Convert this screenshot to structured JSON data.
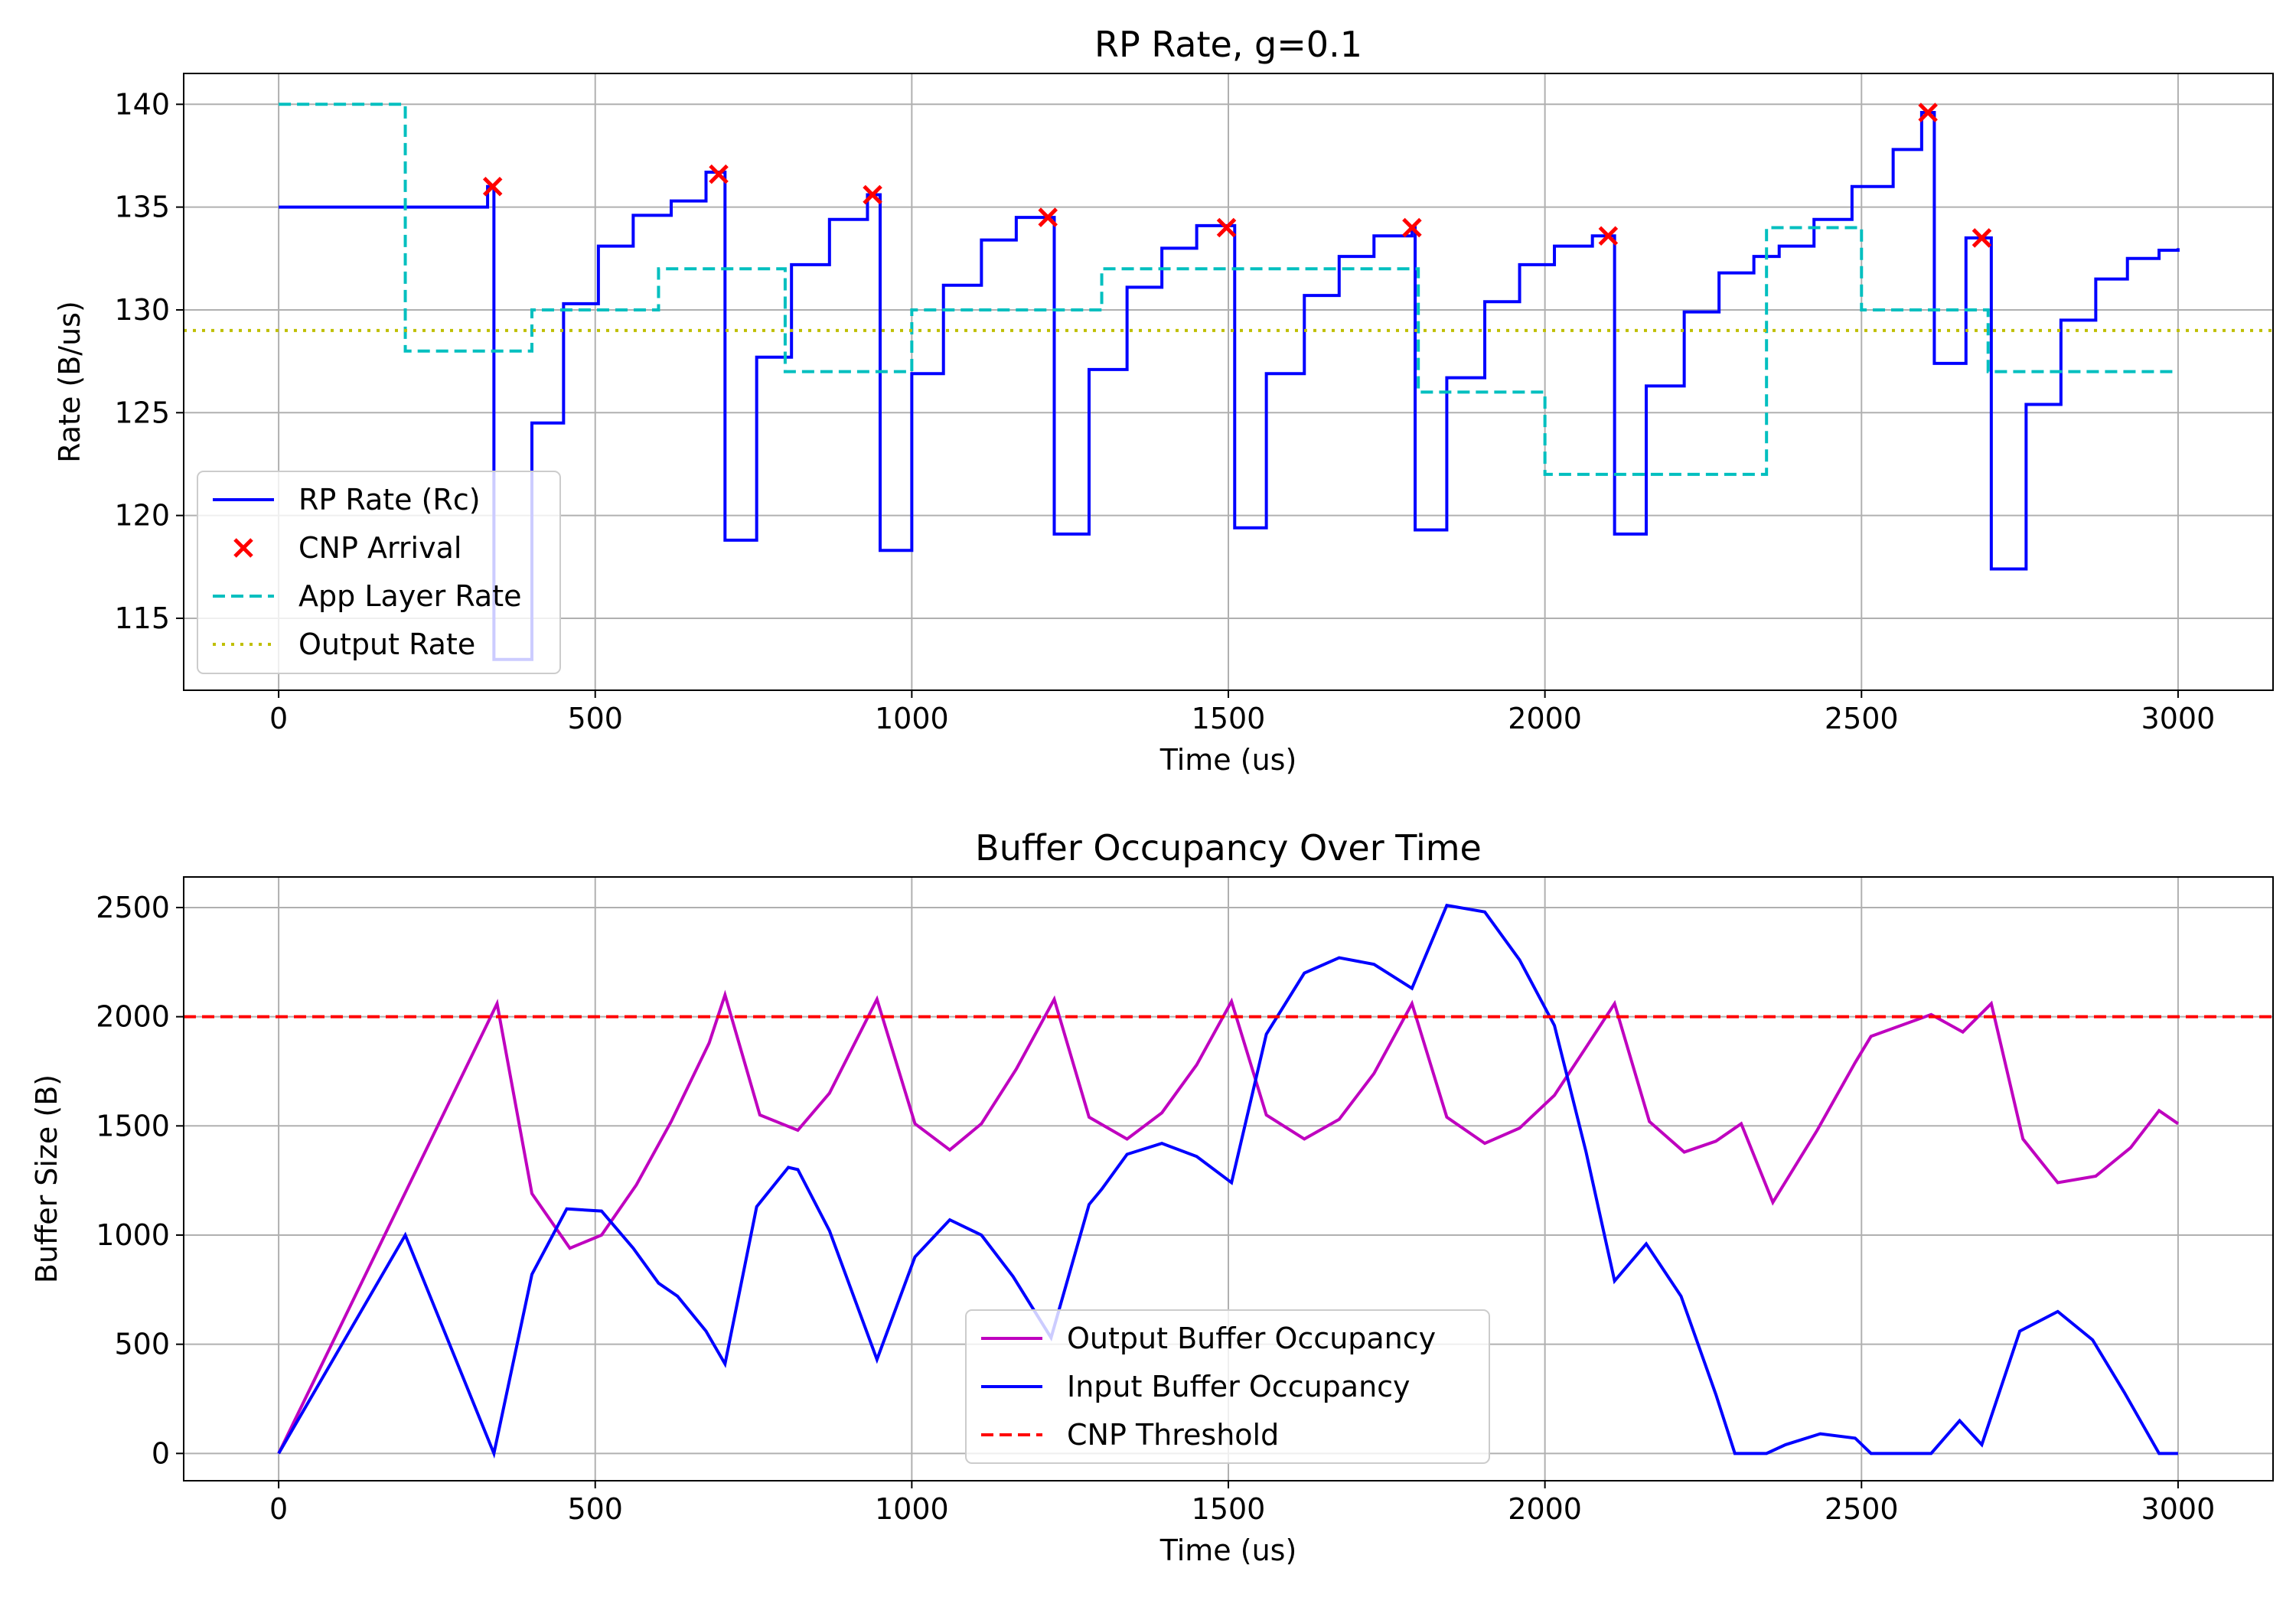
{
  "chart_data": [
    {
      "type": "line",
      "title": "RP Rate, g=0.1",
      "xlabel": "Time (us)",
      "ylabel": "Rate (B/us)",
      "xlim": [
        -150,
        3150
      ],
      "ylim": [
        111.5,
        141.5
      ],
      "xticks": [
        0,
        500,
        1000,
        1500,
        2000,
        2500,
        3000
      ],
      "yticks": [
        115,
        120,
        125,
        130,
        135,
        140
      ],
      "grid": true,
      "legend_position": "lower-left",
      "series": [
        {
          "name": "RP Rate (Rc)",
          "style": "solid",
          "color": "#0000ff",
          "step": true,
          "x": [
            0,
            330,
            340,
            350,
            400,
            450,
            505,
            560,
            620,
            675,
            705,
            755,
            810,
            870,
            930,
            950,
            1000,
            1050,
            1110,
            1165,
            1220,
            1225,
            1280,
            1340,
            1395,
            1450,
            1505,
            1510,
            1560,
            1620,
            1675,
            1730,
            1790,
            1795,
            1845,
            1905,
            1960,
            2015,
            2075,
            2105,
            2110,
            2160,
            2220,
            2275,
            2330,
            2370,
            2425,
            2485,
            2550,
            2595,
            2615,
            2620,
            2665,
            2690,
            2705,
            2760,
            2815,
            2870,
            2920,
            2970,
            3000
          ],
          "y": [
            135,
            136,
            113,
            113,
            124.5,
            130.3,
            133.1,
            134.6,
            135.3,
            136.7,
            118.8,
            127.7,
            132.2,
            134.4,
            135.6,
            118.3,
            126.9,
            131.2,
            133.4,
            134.5,
            134.5,
            119.1,
            127.1,
            131.1,
            133,
            134.1,
            134.1,
            119.4,
            126.9,
            130.7,
            132.6,
            133.6,
            134,
            119.3,
            126.7,
            130.4,
            132.2,
            133.1,
            133.6,
            133.6,
            119.1,
            126.3,
            129.9,
            131.8,
            132.6,
            133.1,
            134.4,
            136,
            137.8,
            139.6,
            127.4,
            127.4,
            133.5,
            133.5,
            117.4,
            125.4,
            129.5,
            131.5,
            132.5,
            132.9,
            133
          ]
        },
        {
          "name": "CNP Arrival",
          "style": "marker-x",
          "color": "#ff0000",
          "x": [
            338,
            695,
            938,
            1215,
            1497,
            1790,
            2100,
            2605,
            2690
          ],
          "y": [
            136,
            136.6,
            135.6,
            134.5,
            134,
            134,
            133.6,
            139.6,
            133.5
          ]
        },
        {
          "name": "App Layer Rate",
          "style": "dashed",
          "color": "#00bfbf",
          "step": true,
          "x": [
            0,
            200,
            400,
            600,
            800,
            1000,
            1300,
            1800,
            2000,
            2350,
            2500,
            2700,
            3000
          ],
          "y": [
            140,
            128,
            130,
            132,
            127,
            130,
            132,
            126,
            122,
            134,
            130,
            127,
            127
          ]
        },
        {
          "name": "Output Rate",
          "style": "dotted",
          "color": "#bfbf00",
          "x": [
            -150,
            3150
          ],
          "y": [
            129,
            129
          ]
        }
      ]
    },
    {
      "type": "line",
      "title": "Buffer Occupancy Over Time",
      "xlabel": "Time (us)",
      "ylabel": "Buffer Size (B)",
      "xlim": [
        -150,
        3150
      ],
      "ylim": [
        -125,
        2640
      ],
      "xticks": [
        0,
        500,
        1000,
        1500,
        2000,
        2500,
        3000
      ],
      "yticks": [
        0,
        500,
        1000,
        1500,
        2000,
        2500
      ],
      "grid": true,
      "legend_position": "lower-center",
      "series": [
        {
          "name": "Output Buffer Occupancy",
          "style": "solid",
          "color": "#bf00bf",
          "x": [
            0,
            345,
            400,
            460,
            510,
            565,
            620,
            680,
            705,
            760,
            820,
            870,
            945,
            1005,
            1060,
            1110,
            1165,
            1225,
            1280,
            1340,
            1395,
            1450,
            1505,
            1560,
            1620,
            1675,
            1730,
            1790,
            1845,
            1905,
            1960,
            2015,
            2065,
            2110,
            2165,
            2220,
            2270,
            2310,
            2360,
            2430,
            2490,
            2515,
            2610,
            2660,
            2705,
            2755,
            2810,
            2870,
            2925,
            2970,
            3000
          ],
          "y": [
            0,
            2060,
            1190,
            940,
            1000,
            1230,
            1520,
            1880,
            2100,
            1550,
            1480,
            1650,
            2080,
            1510,
            1390,
            1510,
            1760,
            2080,
            1540,
            1440,
            1560,
            1780,
            2070,
            1550,
            1440,
            1530,
            1740,
            2060,
            1540,
            1420,
            1490,
            1640,
            1860,
            2060,
            1520,
            1380,
            1430,
            1510,
            1150,
            1480,
            1790,
            1910,
            2010,
            1930,
            2060,
            1440,
            1240,
            1270,
            1400,
            1570,
            1510
          ]
        },
        {
          "name": "Input Buffer Occupancy",
          "style": "solid",
          "color": "#0000ff",
          "x": [
            0,
            200,
            340,
            400,
            455,
            510,
            560,
            600,
            630,
            675,
            705,
            755,
            805,
            820,
            870,
            945,
            1005,
            1060,
            1110,
            1160,
            1220,
            1280,
            1300,
            1340,
            1395,
            1450,
            1505,
            1560,
            1620,
            1675,
            1730,
            1790,
            1845,
            1905,
            1960,
            2015,
            2065,
            2110,
            2160,
            2215,
            2270,
            2300,
            2350,
            2380,
            2435,
            2490,
            2515,
            2610,
            2655,
            2690,
            2750,
            2810,
            2865,
            2915,
            2970,
            3000
          ],
          "y": [
            0,
            1000,
            0,
            820,
            1120,
            1110,
            940,
            780,
            720,
            560,
            410,
            1130,
            1310,
            1300,
            1020,
            430,
            900,
            1070,
            1000,
            810,
            530,
            1140,
            1210,
            1370,
            1420,
            1360,
            1240,
            1920,
            2200,
            2270,
            2240,
            2130,
            2510,
            2480,
            2260,
            1960,
            1380,
            790,
            960,
            720,
            270,
            0,
            0,
            40,
            90,
            70,
            0,
            0,
            150,
            40,
            560,
            650,
            520,
            280,
            0,
            0
          ]
        },
        {
          "name": "CNP Threshold",
          "style": "dashed",
          "color": "#ff0000",
          "x": [
            -150,
            3150
          ],
          "y": [
            2000,
            2000
          ]
        }
      ]
    }
  ]
}
